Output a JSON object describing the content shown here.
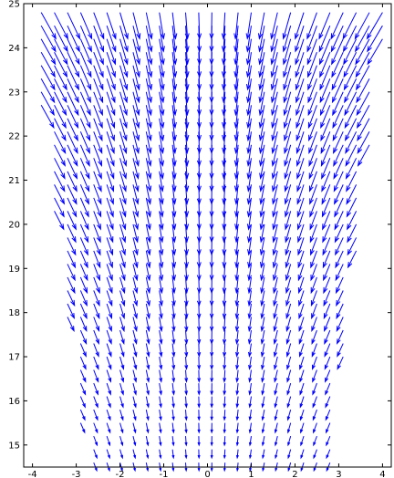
{
  "chart_data": {
    "type": "quiver",
    "title": "",
    "xlabel": "",
    "ylabel": "",
    "xlim": [
      -4.2,
      4.2
    ],
    "ylim": [
      14.5,
      25
    ],
    "grid": false,
    "legend": "none",
    "arrow_color": "#0000ff",
    "x_ticks": [
      -4,
      -3,
      -2,
      -1,
      0,
      1,
      2,
      3,
      4
    ],
    "x_tick_labels": [
      "-4",
      "-3",
      "-2",
      "-1",
      "0",
      "1",
      "2",
      "3",
      "4"
    ],
    "y_ticks": [
      15,
      16,
      17,
      18,
      19,
      20,
      21,
      22,
      23,
      24,
      25
    ],
    "y_tick_labels": [
      "15",
      "16",
      "17",
      "18",
      "19",
      "20",
      "21",
      "22",
      "23",
      "24",
      "25"
    ],
    "field": {
      "x_start": -4.1,
      "x_step": 0.3,
      "x_count": 28,
      "y_start": 14.6,
      "y_step": 0.3,
      "y_count": 35,
      "region": {
        "bottom_y": 14.6,
        "top_y": 25.0,
        "half_width_bottom": 2.8,
        "half_width_top": 4.1
      },
      "vector_direction_slope": -0.33,
      "vector_length_bottom": 0.18,
      "vector_length_top": 0.6
    }
  }
}
